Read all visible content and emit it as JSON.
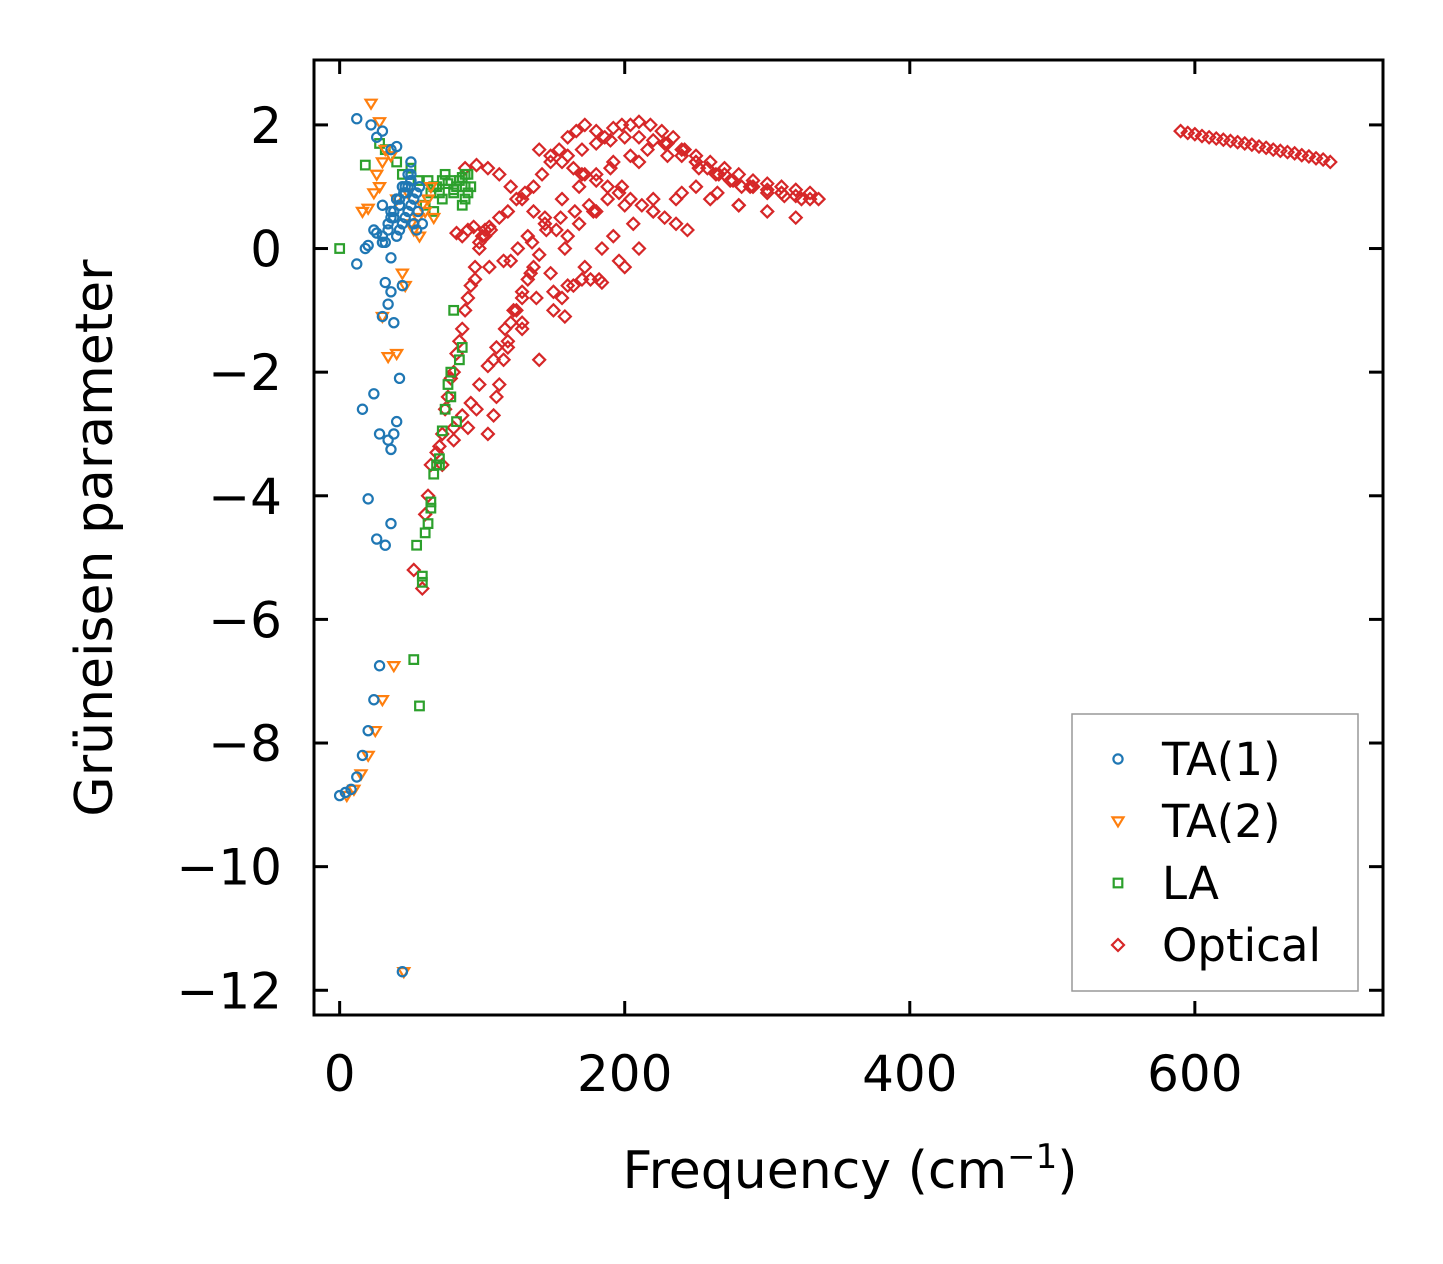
{
  "chart_data": {
    "type": "scatter",
    "title": "",
    "xlabel": "Frequency (cm",
    "xlabel_superscript": "−1",
    "xlabel_suffix": ")",
    "ylabel": "Grüneisen parameter",
    "xlim": [
      -18,
      732
    ],
    "ylim": [
      -12.4,
      3.05
    ],
    "xticks": [
      0,
      200,
      400,
      600
    ],
    "xtick_labels": [
      "0",
      "200",
      "400",
      "600"
    ],
    "yticks": [
      2,
      0,
      -2,
      -4,
      -6,
      -8,
      -10,
      -12
    ],
    "ytick_labels": [
      "2",
      "0",
      "−2",
      "−4",
      "−6",
      "−8",
      "−10",
      "−12"
    ],
    "grid": false,
    "legend_position": "lower-right",
    "series": [
      {
        "name": "TA(1)",
        "marker": "circle",
        "color": "#1f77b4",
        "x": [
          0,
          4,
          8,
          12,
          16,
          20,
          24,
          28,
          32,
          36,
          44,
          12,
          22,
          26,
          30,
          16,
          24,
          28,
          34,
          36,
          38,
          40,
          34,
          30,
          38,
          20,
          26,
          32,
          36,
          42,
          20,
          26,
          30,
          36,
          44,
          12,
          18,
          24,
          32,
          40,
          36,
          50,
          30,
          36,
          40,
          45,
          48,
          50,
          52,
          55,
          42,
          46,
          50,
          54,
          58,
          40,
          44,
          48,
          52,
          56,
          38,
          42,
          46,
          50,
          54,
          36,
          40,
          44,
          48,
          52,
          34,
          38,
          42,
          46,
          50,
          30,
          34,
          38,
          42,
          46
        ],
        "y": [
          -8.85,
          -8.8,
          -8.75,
          -8.55,
          -8.2,
          -7.8,
          -7.3,
          -6.75,
          -0.55,
          -0.7,
          -11.7,
          2.1,
          2.0,
          1.8,
          1.9,
          -2.6,
          -2.35,
          -3.0,
          -3.1,
          -3.25,
          -3.0,
          -2.8,
          -0.9,
          -1.1,
          -1.2,
          -4.05,
          -4.7,
          -4.8,
          -4.45,
          -2.1,
          0.05,
          0.25,
          0.1,
          -0.15,
          -0.6,
          -0.25,
          0.0,
          0.3,
          0.1,
          1.65,
          1.6,
          1.4,
          0.7,
          0.5,
          0.8,
          0.9,
          1.0,
          1.2,
          0.4,
          0.6,
          0.3,
          0.5,
          0.7,
          0.9,
          0.4,
          0.2,
          0.4,
          0.6,
          0.8,
          1.0,
          0.5,
          0.7,
          0.9,
          1.1,
          0.3,
          0.6,
          0.8,
          1.0,
          1.2,
          0.4,
          0.3,
          0.5,
          0.7,
          0.9,
          1.1,
          0.2,
          0.4,
          0.6,
          0.8,
          1.0
        ]
      },
      {
        "name": "TA(2)",
        "marker": "triangle-down",
        "color": "#ff7f0e",
        "x": [
          5,
          10,
          15,
          20,
          25,
          30,
          38,
          45,
          22,
          28,
          32,
          26,
          30,
          36,
          40,
          16,
          20,
          24,
          28,
          30,
          34,
          40,
          46,
          50,
          55,
          60,
          48,
          52,
          58,
          62,
          66,
          44,
          56,
          64
        ],
        "y": [
          -8.85,
          -8.75,
          -8.5,
          -8.2,
          -7.8,
          -7.3,
          -6.75,
          -11.7,
          2.35,
          2.05,
          1.6,
          1.2,
          1.4,
          1.5,
          0.8,
          0.6,
          0.65,
          0.9,
          1.0,
          -1.1,
          -1.75,
          -1.7,
          -0.6,
          0.4,
          0.5,
          0.6,
          0.9,
          0.3,
          0.7,
          0.8,
          0.5,
          -0.4,
          0.2,
          1.0
        ]
      },
      {
        "name": "LA",
        "marker": "square",
        "color": "#2ca02c",
        "x": [
          0,
          28,
          32,
          18,
          40,
          44,
          52,
          56,
          58,
          60,
          62,
          64,
          66,
          68,
          70,
          72,
          74,
          76,
          78,
          80,
          82,
          84,
          86,
          88,
          90,
          54,
          58,
          64,
          70,
          78,
          86,
          62,
          66,
          70,
          74,
          78,
          82,
          86,
          90,
          66,
          72,
          80,
          88,
          60,
          64,
          68,
          72,
          76,
          80,
          84,
          88,
          92,
          50,
          55
        ],
        "y": [
          0.0,
          1.7,
          1.6,
          1.35,
          1.4,
          1.2,
          -6.65,
          -7.4,
          -5.3,
          -4.6,
          -4.45,
          -4.1,
          -3.65,
          -3.5,
          -3.4,
          -2.95,
          -2.6,
          -2.2,
          -2.0,
          -1.0,
          -2.8,
          -1.8,
          0.7,
          0.8,
          0.9,
          -4.8,
          -5.4,
          -4.2,
          -3.5,
          -2.4,
          -1.6,
          1.1,
          1.0,
          0.9,
          1.2,
          1.1,
          1.0,
          1.15,
          1.2,
          0.6,
          0.8,
          0.9,
          1.0,
          0.7,
          0.9,
          1.0,
          1.1,
          1.05,
          0.95,
          1.1,
          1.2,
          1.0,
          1.3,
          1.1
        ]
      },
      {
        "name": "Optical",
        "marker": "diamond",
        "color": "#d62728",
        "x": [
          52,
          58,
          60,
          62,
          64,
          68,
          70,
          72,
          74,
          76,
          78,
          80,
          82,
          84,
          86,
          88,
          90,
          92,
          95,
          98,
          100,
          102,
          105,
          108,
          110,
          112,
          115,
          118,
          120,
          124,
          128,
          132,
          136,
          140,
          82,
          86,
          90,
          94,
          98,
          102,
          106,
          112,
          118,
          124,
          130,
          136,
          142,
          148,
          154,
          160,
          166,
          172,
          180,
          186,
          192,
          198,
          204,
          210,
          218,
          226,
          234,
          242,
          250,
          258,
          266,
          274,
          282,
          290,
          300,
          310,
          320,
          330,
          336,
          140,
          148,
          156,
          164,
          172,
          180,
          188,
          196,
          204,
          212,
          220,
          228,
          236,
          244,
          150,
          160,
          170,
          176,
          184,
          200,
          210,
          150,
          156,
          164,
          172,
          184,
          192,
          206,
          220,
          236,
          250,
          265,
          280,
          88,
          96,
          104,
          112,
          120,
          128,
          136,
          144,
          152,
          160,
          95,
          105,
          115,
          125,
          135,
          145,
          155,
          165,
          175,
          108,
          118,
          128,
          138,
          148,
          158,
          168,
          178,
          188,
          198,
          120,
          132,
          144,
          156,
          168,
          180,
          192,
          204,
          216,
          228,
          240,
          252,
          264,
          276,
          288,
          300,
          312,
          324,
          80,
          86,
          92,
          98,
          104,
          110,
          116,
          122,
          128,
          134,
          104,
          128,
          140,
          158,
          182,
          196,
          72,
          80,
          90,
          96,
          160,
          170,
          180,
          190,
          200,
          210,
          220,
          230,
          240,
          250,
          260,
          270,
          280,
          290,
          300,
          310,
          320,
          330,
          170,
          190,
          210,
          230,
          250,
          270,
          290,
          310,
          180,
          200,
          220,
          240,
          260,
          280,
          300,
          320,
          590,
          600,
          610,
          620,
          630,
          640,
          650,
          660,
          670,
          680,
          690,
          695,
          595,
          605,
          615,
          625,
          635,
          645,
          655,
          665,
          675,
          685
        ],
        "y": [
          -5.2,
          -5.5,
          -4.3,
          -4.0,
          -3.5,
          -3.3,
          -3.2,
          -3.0,
          -2.6,
          -2.4,
          -2.1,
          -2.0,
          -1.7,
          -1.5,
          -1.3,
          -1.0,
          -0.8,
          -0.6,
          -0.3,
          0.0,
          0.2,
          0.3,
          0.35,
          -2.7,
          -2.4,
          -2.2,
          -1.8,
          -1.5,
          -1.2,
          -1.0,
          -0.8,
          -0.5,
          -0.3,
          -0.1,
          0.25,
          0.2,
          0.3,
          0.35,
          0.1,
          0.2,
          0.3,
          0.5,
          0.6,
          0.8,
          0.9,
          1.0,
          1.2,
          1.4,
          1.6,
          1.8,
          1.9,
          2.0,
          1.9,
          1.8,
          1.95,
          2.0,
          2.0,
          2.05,
          2.0,
          1.9,
          1.8,
          1.6,
          1.4,
          1.3,
          1.2,
          1.1,
          1.0,
          1.0,
          0.95,
          0.9,
          0.85,
          0.8,
          0.8,
          1.6,
          1.5,
          1.4,
          1.3,
          1.2,
          1.1,
          1.0,
          0.9,
          0.8,
          0.7,
          0.6,
          0.5,
          0.4,
          0.3,
          -0.7,
          -0.6,
          -0.5,
          -0.5,
          -0.55,
          -0.3,
          0.0,
          -1.0,
          -0.8,
          -0.6,
          -0.3,
          0.0,
          0.2,
          0.4,
          0.6,
          0.8,
          1.0,
          0.9,
          0.7,
          1.3,
          1.35,
          1.3,
          1.2,
          1.0,
          0.8,
          0.6,
          0.4,
          0.3,
          0.2,
          -0.5,
          -0.3,
          -0.2,
          0.0,
          0.1,
          0.3,
          0.5,
          0.6,
          0.7,
          -1.8,
          -1.6,
          -1.2,
          -0.8,
          -0.4,
          0.0,
          0.4,
          0.6,
          0.8,
          1.0,
          -0.2,
          0.2,
          0.5,
          0.8,
          1.0,
          1.2,
          1.4,
          1.5,
          1.6,
          1.7,
          1.5,
          1.3,
          1.2,
          1.1,
          1.0,
          0.9,
          0.85,
          0.8,
          -2.9,
          -2.7,
          -2.5,
          -2.2,
          -1.9,
          -1.6,
          -1.3,
          -1.0,
          -0.7,
          -0.4,
          -3.0,
          -1.3,
          -1.8,
          -1.1,
          -0.5,
          -0.2,
          -3.5,
          -3.1,
          -2.9,
          -2.6,
          1.5,
          1.6,
          1.7,
          1.75,
          1.8,
          1.8,
          1.75,
          1.7,
          1.6,
          1.5,
          1.4,
          1.3,
          1.2,
          1.1,
          1.05,
          1.0,
          0.95,
          0.9,
          1.2,
          1.3,
          1.4,
          1.5,
          1.4,
          1.2,
          1.0,
          0.9,
          0.6,
          0.7,
          0.8,
          0.9,
          0.8,
          0.7,
          0.6,
          0.5,
          1.9,
          1.85,
          1.8,
          1.76,
          1.72,
          1.68,
          1.63,
          1.58,
          1.54,
          1.49,
          1.44,
          1.4,
          1.87,
          1.82,
          1.78,
          1.74,
          1.7,
          1.65,
          1.6,
          1.56,
          1.51,
          1.46
        ]
      }
    ]
  }
}
